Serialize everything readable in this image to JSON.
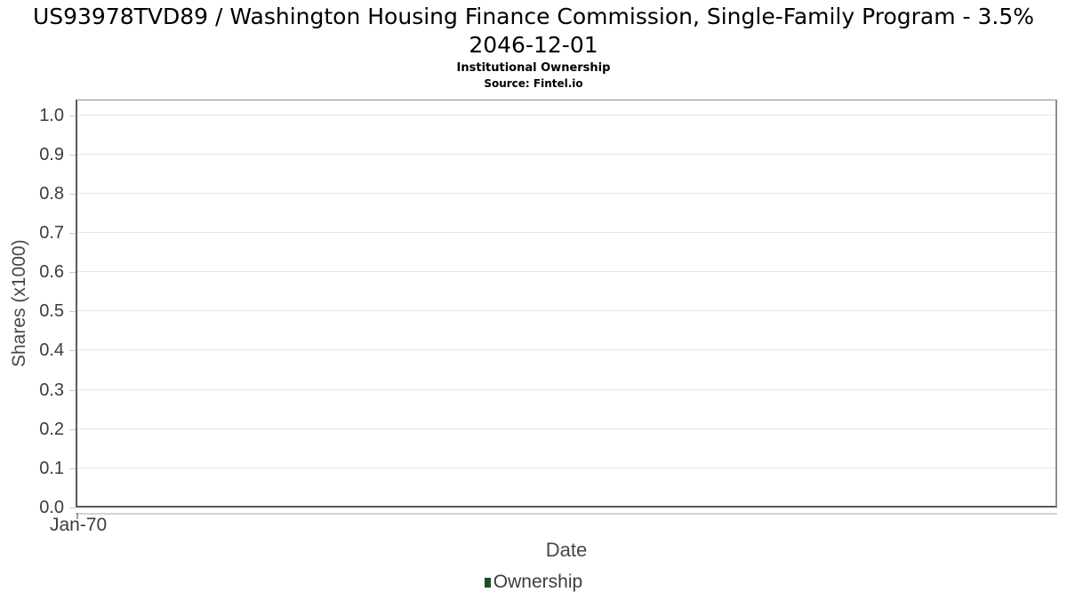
{
  "header": {
    "title": "US93978TVD89 / Washington Housing Finance Commission, Single-Family Program - 3.5% 2046-12-01",
    "subtitle": "Institutional Ownership",
    "source": "Source: Fintel.io"
  },
  "chart_data": {
    "type": "line",
    "title": "US93978TVD89 / Washington Housing Finance Commission, Single-Family Program - 3.5% 2046-12-01",
    "subtitle": "Institutional Ownership",
    "source": "Source: Fintel.io",
    "xlabel": "Date",
    "ylabel": "Shares (x1000)",
    "x_ticks": [
      "Jan-70"
    ],
    "y_ticks": [
      0.0,
      0.1,
      0.2,
      0.3,
      0.4,
      0.5,
      0.6,
      0.7,
      0.8,
      0.9,
      1.0
    ],
    "ylim": [
      0.0,
      1.04
    ],
    "grid": "horizontal-only",
    "legend_position": "bottom-center",
    "series": [
      {
        "name": "Ownership",
        "color": "#1e4d28",
        "x": [],
        "values": []
      }
    ],
    "note_empty": "no data points plotted"
  },
  "legend": {
    "label": "Ownership",
    "marker_color": "#1e4d28"
  }
}
